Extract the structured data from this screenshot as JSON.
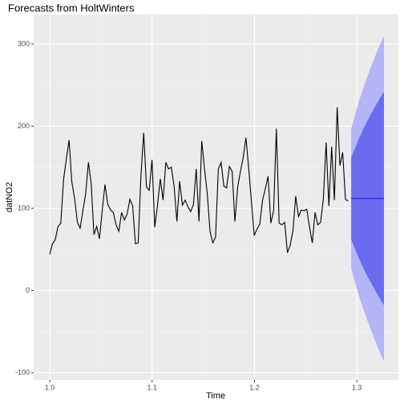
{
  "chart_data": {
    "type": "line",
    "title": "Forecasts from HoltWinters",
    "x_label": "Time",
    "y_label": "datNO2",
    "xlim": [
      0.9843,
      1.3406
    ],
    "ylim": [
      -108.8,
      336
    ],
    "xticks": [
      {
        "value": 1,
        "label": "1.0"
      },
      1.1,
      1.2,
      1.3
    ],
    "yticks": [
      -100,
      0,
      100,
      200,
      300
    ],
    "grid": true,
    "series": [
      {
        "color": "#000000",
        "x": [
          1.0,
          1.0027,
          1.0054,
          1.0081,
          1.0108,
          1.0135,
          1.0162,
          1.0189,
          1.0216,
          1.0243,
          1.027,
          1.0297,
          1.0324,
          1.0351,
          1.0378,
          1.0405,
          1.0432,
          1.0459,
          1.0486,
          1.0513,
          1.054,
          1.0567,
          1.0594,
          1.0621,
          1.0648,
          1.0675,
          1.0702,
          1.0729,
          1.0756,
          1.0783,
          1.081,
          1.0837,
          1.0864,
          1.0891,
          1.0918,
          1.0945,
          1.0972,
          1.0999,
          1.1026,
          1.1053,
          1.108,
          1.1107,
          1.1134,
          1.1161,
          1.1188,
          1.1215,
          1.1242,
          1.1269,
          1.1296,
          1.1323,
          1.135,
          1.1377,
          1.1404,
          1.1431,
          1.1458,
          1.1485,
          1.1512,
          1.1539,
          1.1566,
          1.1593,
          1.162,
          1.1647,
          1.1674,
          1.1701,
          1.1728,
          1.1755,
          1.1782,
          1.1809,
          1.1836,
          1.1863,
          1.189,
          1.1917,
          1.1944,
          1.1971,
          1.1998,
          1.2025,
          1.2052,
          1.2079,
          1.2106,
          1.2133,
          1.216,
          1.2187,
          1.2214,
          1.2241,
          1.2268,
          1.2295,
          1.2322,
          1.2349,
          1.2376,
          1.2403,
          1.243,
          1.2457,
          1.2484,
          1.2511,
          1.2538,
          1.2565,
          1.2592,
          1.2619,
          1.2646,
          1.2673,
          1.27,
          1.2727,
          1.2754,
          1.2781,
          1.2808,
          1.2835,
          1.2862,
          1.2889,
          1.2916
        ],
        "values": [
          44,
          57,
          62,
          78,
          82,
          135,
          160,
          183,
          132,
          112,
          83,
          76,
          97,
          118,
          156,
          130,
          68,
          78,
          63,
          98,
          129,
          105,
          98,
          95,
          80,
          72,
          95,
          86,
          93,
          111,
          103,
          57,
          58,
          140,
          192,
          126,
          122,
          159,
          77,
          104,
          136,
          110,
          156,
          148,
          150,
          127,
          84,
          133,
          104,
          110,
          102,
          96,
          105,
          148,
          84,
          182,
          148,
          118,
          72,
          58,
          65,
          148,
          156,
          127,
          125,
          151,
          145,
          84,
          126,
          145,
          162,
          186,
          148,
          107,
          67,
          75,
          81,
          110,
          124,
          139,
          82,
          97,
          197,
          82,
          80,
          83,
          46,
          55,
          73,
          115,
          90,
          98,
          97,
          99,
          77,
          58,
          95,
          80,
          83,
          112,
          180,
          103,
          175,
          110,
          223,
          152,
          168,
          111,
          109
        ]
      }
    ],
    "forecast": {
      "x": [
        1.2945,
        1.2985,
        1.3025,
        1.3065,
        1.3105,
        1.3145,
        1.3185,
        1.3225,
        1.3265
      ],
      "mean": [
        112,
        112,
        112,
        112,
        112,
        112,
        112,
        112,
        112
      ],
      "hi80": [
        162,
        174,
        186,
        197,
        207,
        216,
        225,
        234,
        242
      ],
      "lo80": [
        62,
        50,
        38,
        27,
        17,
        8,
        -1,
        -10,
        -18
      ],
      "hi95": [
        197,
        215,
        232,
        247,
        261,
        274,
        287,
        299,
        310
      ],
      "lo95": [
        27,
        9,
        -8,
        -23,
        -37,
        -50,
        -63,
        -75,
        -86
      ],
      "mean_color": "#2424d8",
      "band80_color": "#6b6bf0",
      "band95_color": "#b4b4f6"
    }
  }
}
